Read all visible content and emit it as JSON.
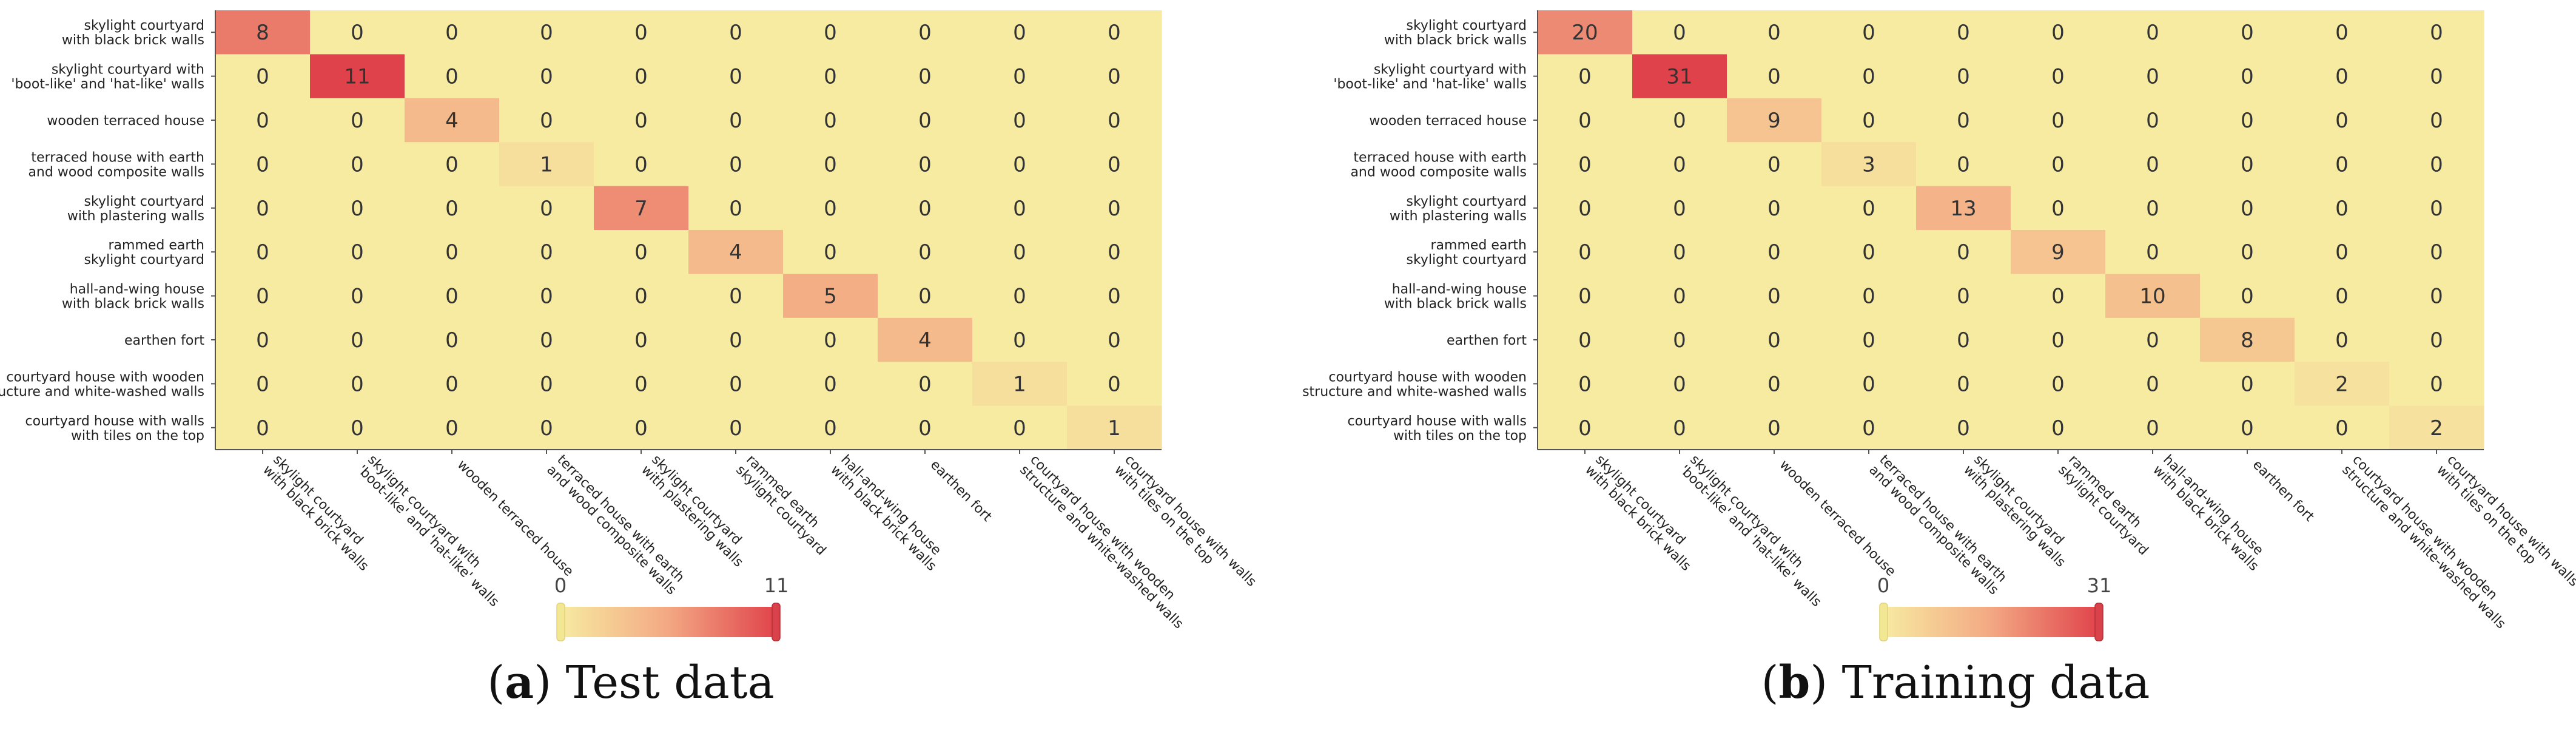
{
  "figure": {
    "colors": {
      "low": "#f7eba2",
      "mid": "#f3a883",
      "high": "#e0424b",
      "handle_low": "#f2e792",
      "handle_high": "#d9424a"
    },
    "panels": [
      {
        "label": "a",
        "caption": " Test data",
        "cbar_min": "0",
        "cbar_max": "11"
      },
      {
        "label": "b",
        "caption": " Training data",
        "cbar_min": "0",
        "cbar_max": "31"
      }
    ]
  },
  "chart_data": [
    {
      "type": "heatmap",
      "title": "",
      "labels": [
        "skylight courtyard\nwith black brick walls",
        "skylight courtyard with\n'boot-like' and 'hat-like' walls",
        "wooden terraced house",
        "terraced house with earth\nand wood composite walls",
        "skylight courtyard\nwith plastering walls",
        "rammed earth\nskylight courtyard",
        "hall-and-wing house\nwith black brick walls",
        "earthen fort",
        "courtyard house with wooden\nstructure and white-washed walls",
        "courtyard house with walls\nwith tiles on the top"
      ],
      "matrix": [
        [
          8,
          0,
          0,
          0,
          0,
          0,
          0,
          0,
          0,
          0
        ],
        [
          0,
          11,
          0,
          0,
          0,
          0,
          0,
          0,
          0,
          0
        ],
        [
          0,
          0,
          4,
          0,
          0,
          0,
          0,
          0,
          0,
          0
        ],
        [
          0,
          0,
          0,
          1,
          0,
          0,
          0,
          0,
          0,
          0
        ],
        [
          0,
          0,
          0,
          0,
          7,
          0,
          0,
          0,
          0,
          0
        ],
        [
          0,
          0,
          0,
          0,
          0,
          4,
          0,
          0,
          0,
          0
        ],
        [
          0,
          0,
          0,
          0,
          0,
          0,
          5,
          0,
          0,
          0
        ],
        [
          0,
          0,
          0,
          0,
          0,
          0,
          0,
          4,
          0,
          0
        ],
        [
          0,
          0,
          0,
          0,
          0,
          0,
          0,
          0,
          1,
          0
        ],
        [
          0,
          0,
          0,
          0,
          0,
          0,
          0,
          0,
          0,
          1
        ]
      ],
      "color_range": [
        0,
        11
      ]
    },
    {
      "type": "heatmap",
      "title": "",
      "labels": [
        "skylight courtyard\nwith black brick walls",
        "skylight courtyard with\n'boot-like' and 'hat-like' walls",
        "wooden terraced house",
        "terraced house with earth\nand wood composite walls",
        "skylight courtyard\nwith plastering walls",
        "rammed earth\nskylight courtyard",
        "hall-and-wing house\nwith black brick walls",
        "earthen fort",
        "courtyard house with wooden\nstructure and white-washed walls",
        "courtyard house with walls\nwith tiles on the top"
      ],
      "matrix": [
        [
          20,
          0,
          0,
          0,
          0,
          0,
          0,
          0,
          0,
          0
        ],
        [
          0,
          31,
          0,
          0,
          0,
          0,
          0,
          0,
          0,
          0
        ],
        [
          0,
          0,
          9,
          0,
          0,
          0,
          0,
          0,
          0,
          0
        ],
        [
          0,
          0,
          0,
          3,
          0,
          0,
          0,
          0,
          0,
          0
        ],
        [
          0,
          0,
          0,
          0,
          13,
          0,
          0,
          0,
          0,
          0
        ],
        [
          0,
          0,
          0,
          0,
          0,
          9,
          0,
          0,
          0,
          0
        ],
        [
          0,
          0,
          0,
          0,
          0,
          0,
          10,
          0,
          0,
          0
        ],
        [
          0,
          0,
          0,
          0,
          0,
          0,
          0,
          8,
          0,
          0
        ],
        [
          0,
          0,
          0,
          0,
          0,
          0,
          0,
          0,
          2,
          0
        ],
        [
          0,
          0,
          0,
          0,
          0,
          0,
          0,
          0,
          0,
          2
        ]
      ],
      "color_range": [
        0,
        31
      ]
    }
  ]
}
